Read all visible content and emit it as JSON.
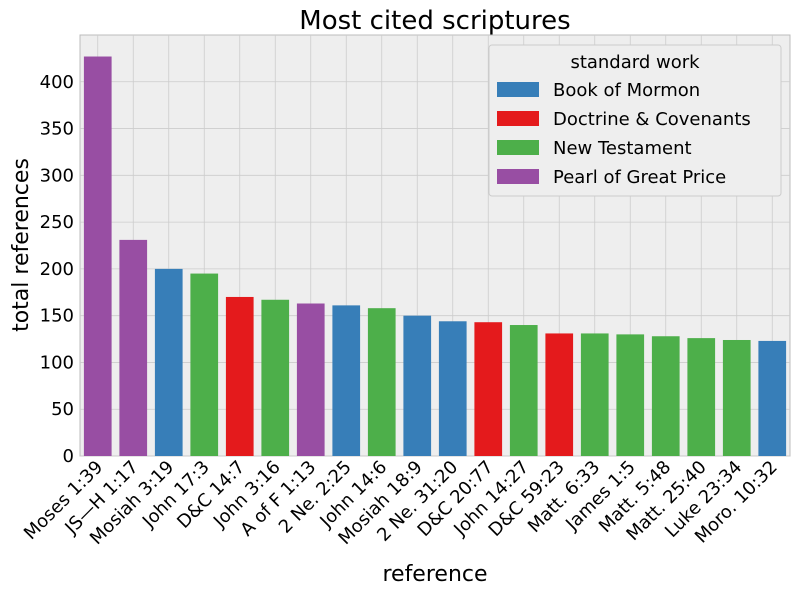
{
  "chart_data": {
    "type": "bar",
    "title": "Most cited scriptures",
    "xlabel": "reference",
    "ylabel": "total references",
    "ylim": [
      0,
      450
    ],
    "yticks": [
      0,
      50,
      100,
      150,
      200,
      250,
      300,
      350,
      400
    ],
    "grid": true,
    "categories": [
      "Moses 1:39",
      "JS—H 1:17",
      "Mosiah 3:19",
      "John 17:3",
      "D&C 14:7",
      "John 3:16",
      "A of F 1:13",
      "2 Ne. 2:25",
      "John 14:6",
      "Mosiah 18:9",
      "2 Ne. 31:20",
      "D&C 20:77",
      "John 14:27",
      "D&C 59:23",
      "Matt. 6:33",
      "James 1:5",
      "Matt. 5:48",
      "Matt. 25:40",
      "Luke 23:34",
      "Moro. 10:32"
    ],
    "values": [
      427,
      231,
      200,
      195,
      170,
      167,
      163,
      161,
      158,
      150,
      144,
      143,
      140,
      131,
      131,
      130,
      128,
      126,
      124,
      123
    ],
    "groups": [
      "Pearl of Great Price",
      "Pearl of Great Price",
      "Book of Mormon",
      "New Testament",
      "Doctrine & Covenants",
      "New Testament",
      "Pearl of Great Price",
      "Book of Mormon",
      "New Testament",
      "Book of Mormon",
      "Book of Mormon",
      "Doctrine & Covenants",
      "New Testament",
      "Doctrine & Covenants",
      "New Testament",
      "New Testament",
      "New Testament",
      "New Testament",
      "New Testament",
      "Book of Mormon"
    ],
    "legend": {
      "title": "standard work",
      "placement": "top-right",
      "entries": [
        {
          "name": "Book of Mormon",
          "color": "#377eb8"
        },
        {
          "name": "Doctrine & Covenants",
          "color": "#e41a1c"
        },
        {
          "name": "New Testament",
          "color": "#4daf4a"
        },
        {
          "name": "Pearl of Great Price",
          "color": "#984ea3"
        }
      ]
    },
    "colors": {
      "background": "#eeeeee",
      "grid": "#cccccc"
    }
  }
}
